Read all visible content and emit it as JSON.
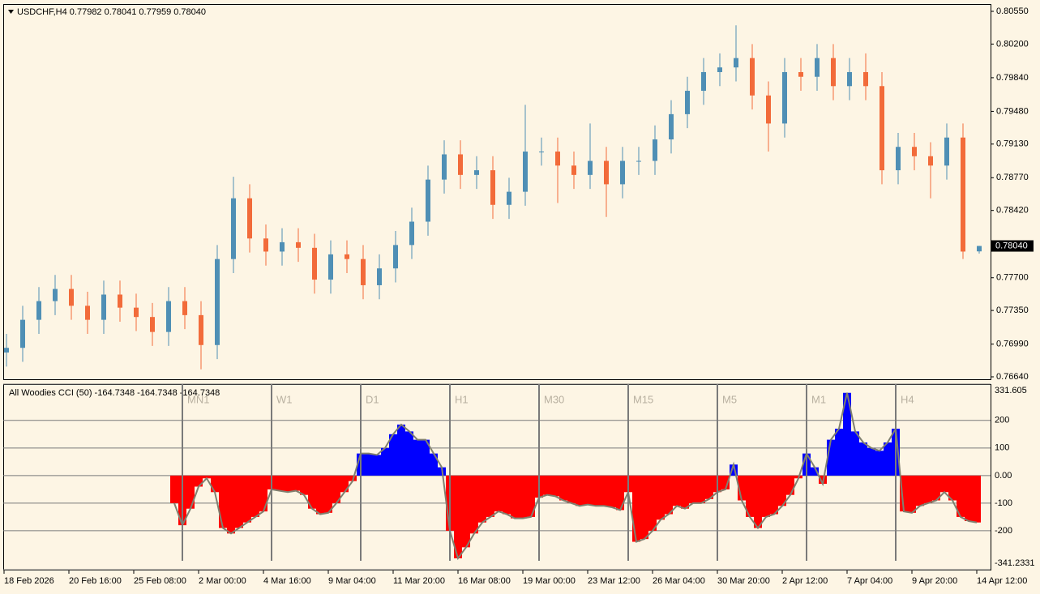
{
  "price_chart": {
    "type": "candlestick",
    "title": "USDCHF,H4  0.77982 0.78041 0.77959 0.78040",
    "open": [
      0.769,
      0.7695,
      0.7725,
      0.7745,
      0.7758,
      0.774,
      0.7725,
      0.7752,
      0.7738,
      0.7728,
      0.7712,
      0.7745,
      0.773,
      0.7698,
      0.779,
      0.7855,
      0.7812,
      0.7798,
      0.7808,
      0.7802,
      0.7768,
      0.7795,
      0.779,
      0.7762,
      0.778,
      0.7805,
      0.783,
      0.7875,
      0.7902,
      0.788,
      0.7885,
      0.7848,
      0.7862,
      0.7905,
      0.7905,
      0.789,
      0.788,
      0.7895,
      0.787,
      0.7895,
      0.7895,
      0.7918,
      0.7945,
      0.797,
      0.799,
      0.7995,
      0.8005,
      0.7965,
      0.7935,
      0.799,
      0.7985,
      0.8005,
      0.7975,
      0.799,
      0.7975,
      0.7885,
      0.791,
      0.79,
      0.789,
      0.792,
      0.77982
    ],
    "high": [
      0.771,
      0.774,
      0.776,
      0.7773,
      0.7773,
      0.7755,
      0.7767,
      0.7767,
      0.7753,
      0.7743,
      0.776,
      0.776,
      0.7745,
      0.7805,
      0.7878,
      0.787,
      0.7827,
      0.7823,
      0.7823,
      0.7817,
      0.781,
      0.781,
      0.7805,
      0.7795,
      0.782,
      0.7845,
      0.789,
      0.7917,
      0.7917,
      0.79,
      0.79,
      0.7877,
      0.7955,
      0.792,
      0.792,
      0.7905,
      0.7935,
      0.791,
      0.791,
      0.791,
      0.7933,
      0.796,
      0.7985,
      0.8005,
      0.801,
      0.804,
      0.802,
      0.798,
      0.8005,
      0.8005,
      0.802,
      0.802,
      0.8005,
      0.801,
      0.799,
      0.7925,
      0.7925,
      0.7915,
      0.7935,
      0.7935,
      0.78041
    ],
    "low": [
      0.7675,
      0.768,
      0.771,
      0.773,
      0.7725,
      0.771,
      0.771,
      0.7723,
      0.7713,
      0.7697,
      0.7697,
      0.7715,
      0.7672,
      0.7683,
      0.7775,
      0.7797,
      0.7783,
      0.7783,
      0.7787,
      0.7753,
      0.7753,
      0.7775,
      0.7747,
      0.7747,
      0.7765,
      0.779,
      0.7815,
      0.786,
      0.7865,
      0.7865,
      0.7833,
      0.7833,
      0.7847,
      0.789,
      0.785,
      0.7865,
      0.7865,
      0.7835,
      0.7855,
      0.788,
      0.788,
      0.7903,
      0.793,
      0.7955,
      0.7975,
      0.798,
      0.795,
      0.7905,
      0.792,
      0.797,
      0.797,
      0.796,
      0.796,
      0.796,
      0.787,
      0.787,
      0.7885,
      0.7855,
      0.7875,
      0.779,
      0.77959
    ],
    "close": [
      0.7695,
      0.7725,
      0.7745,
      0.7758,
      0.774,
      0.7725,
      0.7752,
      0.7738,
      0.7728,
      0.7712,
      0.7745,
      0.773,
      0.7698,
      0.779,
      0.7855,
      0.7812,
      0.7798,
      0.7808,
      0.7802,
      0.7768,
      0.7795,
      0.779,
      0.7762,
      0.778,
      0.7805,
      0.783,
      0.7875,
      0.7902,
      0.788,
      0.7885,
      0.7848,
      0.7862,
      0.7905,
      0.7905,
      0.789,
      0.788,
      0.7895,
      0.787,
      0.7895,
      0.7895,
      0.7918,
      0.7945,
      0.797,
      0.799,
      0.7995,
      0.8005,
      0.7965,
      0.7935,
      0.799,
      0.7985,
      0.8005,
      0.7975,
      0.799,
      0.7975,
      0.7885,
      0.791,
      0.79,
      0.789,
      0.792,
      0.7798,
      0.7804
    ],
    "up_color": "#4f8fb5",
    "down_color": "#f26b3a",
    "ylim": [
      0.76614,
      0.80628
    ],
    "yticks": [
      {
        "value": 0.8055,
        "label": "0.80550"
      },
      {
        "value": 0.802,
        "label": "0.80200"
      },
      {
        "value": 0.7984,
        "label": "0.79840"
      },
      {
        "value": 0.7948,
        "label": "0.79480"
      },
      {
        "value": 0.7913,
        "label": "0.79130"
      },
      {
        "value": 0.7877,
        "label": "0.78770"
      },
      {
        "value": 0.7842,
        "label": "0.78420"
      },
      {
        "value": 0.777,
        "label": "0.77700"
      },
      {
        "value": 0.7735,
        "label": "0.77350"
      },
      {
        "value": 0.7699,
        "label": "0.76990"
      },
      {
        "value": 0.7664,
        "label": "0.76640"
      }
    ],
    "current_price": {
      "value": 0.7804,
      "label": "0.78040"
    },
    "x_labels": [
      "18 Feb 2026",
      "20 Feb 16:00",
      "25 Feb 08:00",
      "2 Mar 00:00",
      "4 Mar 16:00",
      "9 Mar 04:00",
      "11 Mar 20:00",
      "16 Mar 08:00",
      "19 Mar 00:00",
      "23 Mar 12:00",
      "26 Mar 04:00",
      "30 Mar 20:00",
      "2 Apr 12:00",
      "7 Apr 04:00",
      "9 Apr 20:00",
      "14 Apr 12:00"
    ]
  },
  "indicator": {
    "type": "bar",
    "title": "All Woodies CCI (50) -164.7348 -164.7348 -164.7348",
    "values": [
      -100,
      -180,
      -120,
      -40,
      -10,
      -60,
      -190,
      -210,
      -190,
      -170,
      -150,
      -130,
      -50,
      -55,
      -60,
      -55,
      -70,
      -120,
      -140,
      -135,
      -100,
      -60,
      -20,
      80,
      80,
      75,
      100,
      150,
      185,
      160,
      130,
      130,
      80,
      30,
      -200,
      -300,
      -260,
      -210,
      -170,
      -150,
      -130,
      -140,
      -155,
      -155,
      -150,
      -80,
      -70,
      -75,
      -90,
      -100,
      -110,
      -105,
      -110,
      -110,
      -115,
      -125,
      -60,
      -240,
      -230,
      -200,
      -160,
      -140,
      -110,
      -120,
      -100,
      -100,
      -85,
      -60,
      -50,
      40,
      -90,
      -150,
      -190,
      -150,
      -140,
      -110,
      -70,
      -10,
      80,
      30,
      -30,
      130,
      170,
      300,
      160,
      120,
      100,
      90,
      120,
      170,
      -130,
      -135,
      -110,
      -100,
      -90,
      -60,
      -90,
      -150,
      -165,
      -170
    ],
    "positive_color": "#0000ff",
    "negative_color": "#ff0000",
    "ylim": [
      -341.2331,
      331.605
    ],
    "yticks": [
      331.605,
      200,
      100,
      {
        "value": 0,
        "label": "0.00"
      },
      -100,
      -200,
      -341.2331
    ],
    "timeframes": [
      "MN1",
      "W1",
      "D1",
      "H1",
      "M30",
      "M15",
      "M5",
      "M1",
      "H4"
    ]
  }
}
